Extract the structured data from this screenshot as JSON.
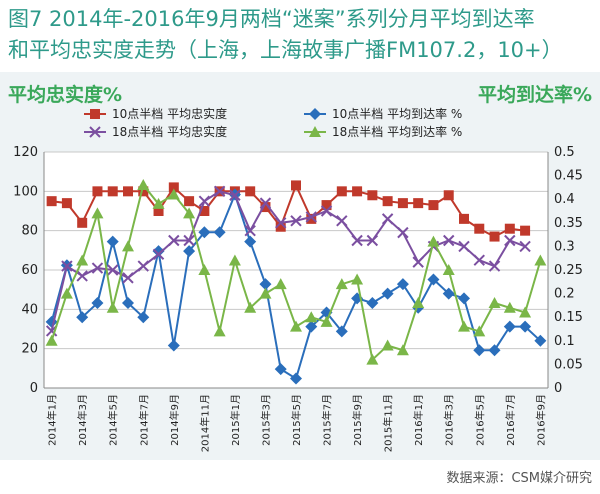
{
  "title": {
    "line1": "图7  2014年-2016年9月两档“迷案”系列分月平均到达率",
    "line2": "和平均忠实度走势（上海，上海故事广播FM107.2，10+）"
  },
  "source": "数据来源：CSM媒介研究",
  "chart_data": {
    "type": "line",
    "ylabel_left": "平均忠实度%",
    "ylabel_right": "平均到达率%",
    "ylim_left": [
      0,
      120
    ],
    "yticks_left": [
      0,
      20,
      40,
      60,
      80,
      100,
      120
    ],
    "ylim_right": [
      0,
      0.5
    ],
    "yticks_right": [
      "0",
      "0.05",
      "0.1",
      "0.15",
      "0.2",
      "0.25",
      "0.3",
      "0.35",
      "0.4",
      "0.45",
      "0.5"
    ],
    "categories": [
      "2014年1月",
      "2014年2月",
      "2014年3月",
      "2014年4月",
      "2014年5月",
      "2014年6月",
      "2014年7月",
      "2014年8月",
      "2014年9月",
      "2014年10月",
      "2014年11月",
      "2014年12月",
      "2015年1月",
      "2015年2月",
      "2015年3月",
      "2015年4月",
      "2015年5月",
      "2015年6月",
      "2015年7月",
      "2015年8月",
      "2015年9月",
      "2015年10月",
      "2015年11月",
      "2015年12月",
      "2016年1月",
      "2016年2月",
      "2016年3月",
      "2016年4月",
      "2016年5月",
      "2016年6月",
      "2016年7月",
      "2016年8月",
      "2016年9月"
    ],
    "tick_labels": [
      "2014年1月",
      "2014年3月",
      "2014年5月",
      "2014年7月",
      "2014年9月",
      "2014年11月",
      "2015年1月",
      "2015年3月",
      "2015年5月",
      "2015年7月",
      "2015年9月",
      "2015年11月",
      "2016年1月",
      "2016年3月",
      "2016年5月",
      "2016年7月",
      "2016年9月"
    ],
    "series": [
      {
        "name": "10点半档 平均忠实度",
        "axis": "left",
        "color": "#c0392b",
        "marker": "square",
        "values": [
          95,
          94,
          84,
          100,
          100,
          100,
          100,
          90,
          102,
          95,
          90,
          100,
          100,
          100,
          92,
          82,
          103,
          86,
          93,
          100,
          100,
          98,
          95,
          94,
          94,
          93,
          98,
          86,
          81,
          77,
          81,
          80,
          null
        ]
      },
      {
        "name": "10点半档 平均到达率 %",
        "axis": "right",
        "color": "#2a6ebb",
        "marker": "diamond",
        "values": [
          0.14,
          0.26,
          0.15,
          0.18,
          0.31,
          0.18,
          0.15,
          0.29,
          0.09,
          0.29,
          0.33,
          0.33,
          0.41,
          0.31,
          0.22,
          0.04,
          0.02,
          0.13,
          0.16,
          0.12,
          0.19,
          0.18,
          0.2,
          0.22,
          0.17,
          0.23,
          0.2,
          0.19,
          0.08,
          0.08,
          0.13,
          0.13,
          0.1
        ]
      },
      {
        "name": "18点半档 平均忠实度",
        "axis": "left",
        "color": "#7b4fa0",
        "marker": "x",
        "values": [
          29,
          62,
          57,
          61,
          60,
          56,
          62,
          68,
          75,
          75,
          95,
          100,
          98,
          80,
          94,
          84,
          85,
          87,
          90,
          85,
          75,
          75,
          86,
          79,
          64,
          72,
          75,
          72,
          65,
          62,
          75,
          72,
          null
        ]
      },
      {
        "name": "18点半档 平均到达率 %",
        "axis": "right",
        "color": "#7ab648",
        "marker": "triangle",
        "values": [
          0.1,
          0.2,
          0.27,
          0.37,
          0.17,
          0.3,
          0.43,
          0.39,
          0.41,
          0.37,
          0.25,
          0.12,
          0.27,
          0.17,
          0.2,
          0.22,
          0.13,
          0.15,
          0.14,
          0.22,
          0.23,
          0.06,
          0.09,
          0.08,
          0.18,
          0.31,
          0.25,
          0.13,
          0.12,
          0.18,
          0.17,
          0.16,
          0.27
        ]
      }
    ],
    "legend_placement": "top"
  }
}
